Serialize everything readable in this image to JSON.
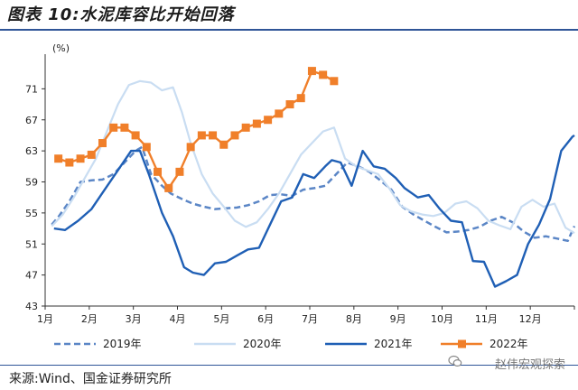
{
  "header": {
    "figure_title": "图表 10:水泥库容比开始回落"
  },
  "footer": {
    "source": "来源:Wind、国金证券研究所",
    "watermark": "赵伟宏观探索"
  },
  "chart_data": {
    "type": "line",
    "title": "",
    "ylabel": "(%)",
    "xlabel": "",
    "ylim": [
      43,
      75
    ],
    "xlim": [
      1,
      13
    ],
    "y_ticks": [
      43,
      47,
      51,
      55,
      59,
      63,
      67,
      71
    ],
    "x_ticks": [
      1,
      2,
      3,
      4,
      5,
      6,
      7,
      8,
      9,
      10,
      11,
      12
    ],
    "x_tick_labels": [
      "1月",
      "2月",
      "3月",
      "4月",
      "5月",
      "6月",
      "7月",
      "8月",
      "9月",
      "10月",
      "11月",
      "12月"
    ],
    "grid": false,
    "legend_position": "bottom",
    "series": [
      {
        "name": "2019年",
        "color": "#5b86c6",
        "style": "dashed",
        "x": [
          1.15,
          1.3,
          1.55,
          1.8,
          2.05,
          2.3,
          2.55,
          2.8,
          3.05,
          3.2,
          3.4,
          3.65,
          3.85,
          4.1,
          4.35,
          4.6,
          4.85,
          5.1,
          5.35,
          5.6,
          5.85,
          6.1,
          6.35,
          6.6,
          6.85,
          7.1,
          7.35,
          7.6,
          7.85,
          8.1,
          8.35,
          8.6,
          8.85,
          9.1,
          9.35,
          9.6,
          9.85,
          10.1,
          10.35,
          10.6,
          10.85,
          11.1,
          11.35,
          11.6,
          11.85,
          12.1,
          12.35,
          12.6,
          12.85,
          13.0
        ],
        "values": [
          53.5,
          54.5,
          56.5,
          59.0,
          59.2,
          59.3,
          60.0,
          61.5,
          63.0,
          63.5,
          60.0,
          58.5,
          57.5,
          56.8,
          56.2,
          55.8,
          55.5,
          55.6,
          55.7,
          56.0,
          56.5,
          57.3,
          57.4,
          57.2,
          58.0,
          58.2,
          58.5,
          60.0,
          61.5,
          61.0,
          60.3,
          59.2,
          58.0,
          55.8,
          54.8,
          54.0,
          53.2,
          52.5,
          52.6,
          52.8,
          53.2,
          54.0,
          54.5,
          53.8,
          52.6,
          51.8,
          52.0,
          51.7,
          51.4,
          53.3
        ]
      },
      {
        "name": "2020年",
        "color": "#c9ddf2",
        "style": "solid",
        "x": [
          1.15,
          1.4,
          1.65,
          1.9,
          2.15,
          2.4,
          2.65,
          2.9,
          3.15,
          3.4,
          3.65,
          3.9,
          4.1,
          4.3,
          4.55,
          4.8,
          5.05,
          5.3,
          5.55,
          5.8,
          6.05,
          6.3,
          6.55,
          6.8,
          7.05,
          7.3,
          7.55,
          7.8,
          8.05,
          8.3,
          8.55,
          8.8,
          9.05,
          9.3,
          9.55,
          9.8,
          10.05,
          10.3,
          10.55,
          10.8,
          11.05,
          11.3,
          11.55,
          11.8,
          12.05,
          12.3,
          12.55,
          12.8,
          13.0
        ],
        "values": [
          53.3,
          54.8,
          57.0,
          59.5,
          62.0,
          65.5,
          69.0,
          71.5,
          72.0,
          71.8,
          70.8,
          71.2,
          68.0,
          64.0,
          60.0,
          57.5,
          55.8,
          54.0,
          53.2,
          53.8,
          55.5,
          57.5,
          60.0,
          62.5,
          64.0,
          65.5,
          66.0,
          62.0,
          61.0,
          60.5,
          60.0,
          58.2,
          56.0,
          55.2,
          54.8,
          54.6,
          55.0,
          56.2,
          56.5,
          55.6,
          54.0,
          53.4,
          52.9,
          55.8,
          56.7,
          55.8,
          56.2,
          53.1,
          52.4
        ]
      },
      {
        "name": "2021年",
        "color": "#1f5fb5",
        "style": "solid",
        "x": [
          1.2,
          1.45,
          1.75,
          2.05,
          2.35,
          2.65,
          2.95,
          3.15,
          3.35,
          3.65,
          3.9,
          4.15,
          4.35,
          4.6,
          4.85,
          5.1,
          5.35,
          5.6,
          5.85,
          6.1,
          6.35,
          6.6,
          6.85,
          7.1,
          7.35,
          7.5,
          7.7,
          7.95,
          8.2,
          8.45,
          8.7,
          8.95,
          9.15,
          9.45,
          9.7,
          9.95,
          10.2,
          10.45,
          10.7,
          10.95,
          11.2,
          11.45,
          11.7,
          11.95,
          12.2,
          12.45,
          12.7,
          12.95,
          13.0
        ],
        "values": [
          53.0,
          52.8,
          54.0,
          55.5,
          58.0,
          60.5,
          63.0,
          63.0,
          60.0,
          55.0,
          52.0,
          48.0,
          47.3,
          47.0,
          48.5,
          48.7,
          49.5,
          50.3,
          50.5,
          53.5,
          56.5,
          57.0,
          60.0,
          59.5,
          61.0,
          61.8,
          61.5,
          58.5,
          63.0,
          61.0,
          60.7,
          59.5,
          58.2,
          57.0,
          57.3,
          55.5,
          54.0,
          53.8,
          48.8,
          48.7,
          45.5,
          46.2,
          47.0,
          51.0,
          53.5,
          56.8,
          63.0,
          64.8,
          65.0
        ]
      },
      {
        "name": "2022年",
        "color": "#f07f2a",
        "style": "solid-square-markers",
        "x": [
          1.3,
          1.55,
          1.8,
          2.05,
          2.3,
          2.55,
          2.8,
          3.05,
          3.3,
          3.55,
          3.8,
          4.05,
          4.3,
          4.55,
          4.8,
          5.05,
          5.3,
          5.55,
          5.8,
          6.05,
          6.3,
          6.55,
          6.8,
          7.05,
          7.3,
          7.55
        ],
        "values": [
          62.0,
          61.5,
          62.0,
          62.5,
          64.0,
          66.0,
          66.0,
          65.0,
          63.5,
          60.3,
          58.2,
          60.3,
          63.5,
          65.0,
          65.0,
          63.8,
          65.0,
          66.0,
          66.5,
          67.0,
          67.8,
          69.0,
          69.8,
          73.3,
          72.8,
          72.0
        ]
      }
    ]
  }
}
